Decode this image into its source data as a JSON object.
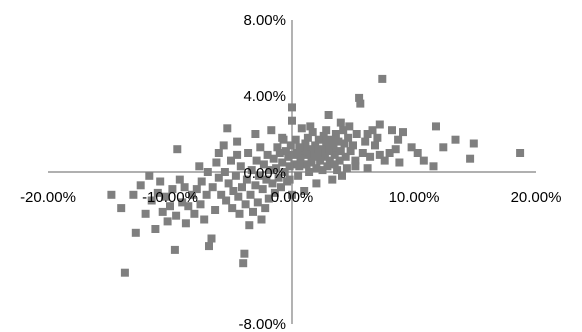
{
  "chart_data": {
    "type": "scatter",
    "title": "",
    "xlabel": "",
    "ylabel": "",
    "xlim": [
      -0.2,
      0.2
    ],
    "ylim": [
      -0.08,
      0.08
    ],
    "x_ticks": [
      {
        "value": -0.2,
        "label": "-20.00%"
      },
      {
        "value": -0.1,
        "label": "-10.00%"
      },
      {
        "value": 0.0,
        "label": "0.00%"
      },
      {
        "value": 0.1,
        "label": "10.00%"
      },
      {
        "value": 0.2,
        "label": "20.00%"
      }
    ],
    "y_ticks": [
      {
        "value": 0.08,
        "label": "8.00%"
      },
      {
        "value": 0.04,
        "label": "4.00%"
      },
      {
        "value": 0.0,
        "label": "0.00%"
      },
      {
        "value": -0.08,
        "label": "-8.00%"
      }
    ],
    "grid": false,
    "marker": "square",
    "color": "#7f7f7f",
    "points": [
      [
        0.187,
        0.01
      ],
      [
        0.149,
        0.015
      ],
      [
        0.146,
        0.007
      ],
      [
        0.134,
        0.017
      ],
      [
        0.124,
        0.013
      ],
      [
        0.118,
        0.024
      ],
      [
        0.116,
        0.003
      ],
      [
        0.108,
        0.006
      ],
      [
        0.103,
        0.01
      ],
      [
        0.098,
        0.013
      ],
      [
        0.091,
        0.021
      ],
      [
        0.087,
        0.017
      ],
      [
        0.085,
        0.012
      ],
      [
        0.082,
        0.022
      ],
      [
        0.08,
        0.01
      ],
      [
        0.076,
        0.006
      ],
      [
        0.074,
        0.049
      ],
      [
        0.072,
        0.025
      ],
      [
        0.07,
        0.018
      ],
      [
        0.068,
        0.014
      ],
      [
        0.066,
        0.022
      ],
      [
        0.064,
        0.008
      ],
      [
        0.062,
        0.002
      ],
      [
        0.06,
        0.016
      ],
      [
        0.058,
        0.01
      ],
      [
        0.056,
        0.036
      ],
      [
        0.055,
        0.039
      ],
      [
        0.053,
        0.02
      ],
      [
        0.052,
        0.006
      ],
      [
        0.05,
        0.014
      ],
      [
        0.048,
        0.011
      ],
      [
        0.046,
        0.018
      ],
      [
        0.045,
        0.002
      ],
      [
        0.044,
        0.008
      ],
      [
        0.043,
        0.015
      ],
      [
        0.042,
        0.022
      ],
      [
        0.041,
        -0.002
      ],
      [
        0.04,
        0.011
      ],
      [
        0.039,
        0.006
      ],
      [
        0.038,
        0.016
      ],
      [
        0.037,
        0.001
      ],
      [
        0.036,
        0.02
      ],
      [
        0.035,
        0.009
      ],
      [
        0.034,
        0.013
      ],
      [
        0.033,
        -0.004
      ],
      [
        0.032,
        0.017
      ],
      [
        0.031,
        0.006
      ],
      [
        0.03,
        0.011
      ],
      [
        0.029,
        0.003
      ],
      [
        0.028,
        0.015
      ],
      [
        0.027,
        0.008
      ],
      [
        0.026,
        0.019
      ],
      [
        0.025,
        0.001
      ],
      [
        0.024,
        0.012
      ],
      [
        0.023,
        0.006
      ],
      [
        0.022,
        0.017
      ],
      [
        0.021,
        0.01
      ],
      [
        0.02,
        0.002
      ],
      [
        0.019,
        0.014
      ],
      [
        0.018,
        0.008
      ],
      [
        0.017,
        0.021
      ],
      [
        0.016,
        0.005
      ],
      [
        0.015,
        0.012
      ],
      [
        0.014,
        0.0
      ],
      [
        0.013,
        0.018
      ],
      [
        0.012,
        0.009
      ],
      [
        0.011,
        0.015
      ],
      [
        0.01,
        0.004
      ],
      [
        0.009,
        0.011
      ],
      [
        0.008,
        0.023
      ],
      [
        0.007,
        0.007
      ],
      [
        0.006,
        0.013
      ],
      [
        0.005,
        -0.002
      ],
      [
        0.004,
        0.01
      ],
      [
        0.003,
        0.017
      ],
      [
        0.002,
        0.004
      ],
      [
        0.001,
        0.009
      ],
      [
        0.0,
        0.034
      ],
      [
        0.0,
        0.027
      ],
      [
        -0.001,
        0.014
      ],
      [
        -0.002,
        0.003
      ],
      [
        -0.003,
        0.008
      ],
      [
        -0.004,
        -0.005
      ],
      [
        -0.005,
        0.011
      ],
      [
        -0.006,
        0.0
      ],
      [
        -0.007,
        0.017
      ],
      [
        -0.008,
        0.005
      ],
      [
        -0.009,
        -0.008
      ],
      [
        -0.01,
        0.01
      ],
      [
        -0.011,
        -0.003
      ],
      [
        -0.012,
        0.013
      ],
      [
        -0.013,
        0.002
      ],
      [
        -0.014,
        -0.011
      ],
      [
        -0.015,
        0.007
      ],
      [
        -0.016,
        -0.006
      ],
      [
        -0.017,
        0.022
      ],
      [
        -0.018,
        0.001
      ],
      [
        -0.019,
        -0.014
      ],
      [
        -0.02,
        0.009
      ],
      [
        -0.021,
        -0.004
      ],
      [
        -0.022,
        -0.019
      ],
      [
        -0.023,
        0.004
      ],
      [
        -0.024,
        -0.009
      ],
      [
        -0.025,
        -0.025
      ],
      [
        -0.026,
        0.013
      ],
      [
        -0.027,
        -0.002
      ],
      [
        -0.028,
        -0.016
      ],
      [
        -0.029,
        0.006
      ],
      [
        -0.03,
        -0.007
      ],
      [
        -0.032,
        -0.021
      ],
      [
        -0.033,
        0.001
      ],
      [
        -0.034,
        -0.012
      ],
      [
        -0.035,
        -0.028
      ],
      [
        -0.036,
        0.01
      ],
      [
        -0.037,
        -0.004
      ],
      [
        -0.038,
        -0.017
      ],
      [
        -0.039,
        -0.043
      ],
      [
        -0.04,
        -0.048
      ],
      [
        -0.041,
        -0.008
      ],
      [
        -0.042,
        0.003
      ],
      [
        -0.043,
        -0.022
      ],
      [
        -0.044,
        -0.013
      ],
      [
        -0.045,
        0.016
      ],
      [
        -0.046,
        -0.002
      ],
      [
        -0.048,
        -0.01
      ],
      [
        -0.049,
        -0.019
      ],
      [
        -0.05,
        0.006
      ],
      [
        -0.052,
        -0.006
      ],
      [
        -0.053,
        0.023
      ],
      [
        -0.054,
        -0.015
      ],
      [
        -0.055,
        0.0
      ],
      [
        -0.056,
        0.014
      ],
      [
        -0.058,
        -0.012
      ],
      [
        -0.06,
        -0.003
      ],
      [
        -0.062,
        0.005
      ],
      [
        -0.063,
        -0.02
      ],
      [
        -0.065,
        -0.008
      ],
      [
        -0.066,
        -0.035
      ],
      [
        -0.068,
        -0.039
      ],
      [
        -0.069,
        0.0
      ],
      [
        -0.07,
        -0.012
      ],
      [
        -0.072,
        -0.025
      ],
      [
        -0.074,
        -0.005
      ],
      [
        -0.075,
        -0.017
      ],
      [
        -0.076,
        0.003
      ],
      [
        -0.078,
        -0.009
      ],
      [
        -0.08,
        -0.022
      ],
      [
        -0.082,
        -0.012
      ],
      [
        -0.085,
        -0.018
      ],
      [
        -0.087,
        -0.027
      ],
      [
        -0.088,
        -0.008
      ],
      [
        -0.09,
        -0.016
      ],
      [
        -0.092,
        -0.004
      ],
      [
        -0.094,
        0.012
      ],
      [
        -0.095,
        -0.023
      ],
      [
        -0.096,
        -0.041
      ],
      [
        -0.098,
        -0.009
      ],
      [
        -0.1,
        -0.018
      ],
      [
        -0.102,
        -0.026
      ],
      [
        -0.104,
        -0.013
      ],
      [
        -0.106,
        -0.021
      ],
      [
        -0.108,
        -0.005
      ],
      [
        -0.11,
        -0.011
      ],
      [
        -0.112,
        -0.03
      ],
      [
        -0.115,
        -0.015
      ],
      [
        -0.117,
        -0.002
      ],
      [
        -0.12,
        -0.022
      ],
      [
        -0.124,
        -0.007
      ],
      [
        -0.128,
        -0.032
      ],
      [
        -0.13,
        -0.012
      ],
      [
        -0.137,
        -0.053
      ],
      [
        -0.14,
        -0.019
      ],
      [
        -0.148,
        -0.012
      ],
      [
        0.062,
        0.02
      ],
      [
        0.047,
        0.024
      ],
      [
        0.028,
        0.022
      ],
      [
        0.015,
        0.024
      ],
      [
        0.035,
        0.004
      ],
      [
        0.052,
        0.003
      ],
      [
        0.02,
        -0.006
      ],
      [
        0.01,
        -0.01
      ],
      [
        0.0,
        -0.012
      ],
      [
        -0.008,
        0.018
      ],
      [
        0.072,
        0.009
      ],
      [
        0.088,
        0.005
      ],
      [
        -0.03,
        0.02
      ],
      [
        -0.06,
        0.01
      ],
      [
        -0.045,
        0.009
      ],
      [
        0.03,
        0.03
      ],
      [
        0.04,
        0.026
      ],
      [
        0.012,
        0.004
      ],
      [
        -0.002,
        -0.004
      ],
      [
        0.006,
        0.003
      ]
    ]
  }
}
